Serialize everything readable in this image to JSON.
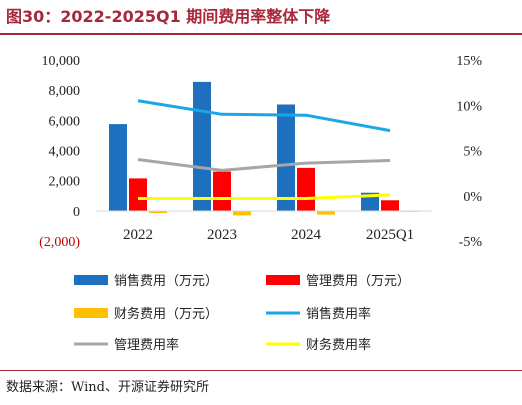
{
  "title": "图30：2022-2025Q1 期间费用率整体下降",
  "source": "数据来源：Wind、开源证券研究所",
  "chart_data": {
    "type": "bar",
    "categories": [
      "2022",
      "2023",
      "2024",
      "2025Q1"
    ],
    "left_axis": {
      "ylim": [
        -2000,
        10000
      ],
      "ticks": [
        -2000,
        0,
        2000,
        4000,
        6000,
        8000,
        10000
      ],
      "tick_labels": [
        "(2,000)",
        "0",
        "2,000",
        "4,000",
        "6,000",
        "8,000",
        "10,000"
      ],
      "negative_color": "#c00000"
    },
    "right_axis": {
      "ylim": [
        -5,
        15
      ],
      "ticks": [
        -5,
        0,
        5,
        10,
        15
      ],
      "tick_labels": [
        "-5%",
        "0%",
        "5%",
        "10%",
        "15%"
      ]
    },
    "bar_series": [
      {
        "name": "销售费用（万元）",
        "color": "#1f6fbf",
        "values": [
          5750,
          8550,
          7050,
          1200
        ]
      },
      {
        "name": "管理费用（万元）",
        "color": "#ff0000",
        "values": [
          2150,
          2600,
          2850,
          700
        ]
      },
      {
        "name": "财务费用（万元）",
        "color": "#ffc000",
        "values": [
          -150,
          -300,
          -250,
          -40
        ]
      }
    ],
    "line_series": [
      {
        "name": "销售费用率",
        "color": "#1aa7e8",
        "values": [
          10.5,
          9.0,
          8.9,
          7.2
        ]
      },
      {
        "name": "管理费用率",
        "color": "#a6a6a6",
        "values": [
          4.0,
          2.8,
          3.6,
          3.9
        ]
      },
      {
        "name": "财务费用率",
        "color": "#ffff00",
        "values": [
          -0.3,
          -0.3,
          -0.3,
          0.1
        ]
      }
    ],
    "legend_position": "bottom",
    "grid": false
  }
}
